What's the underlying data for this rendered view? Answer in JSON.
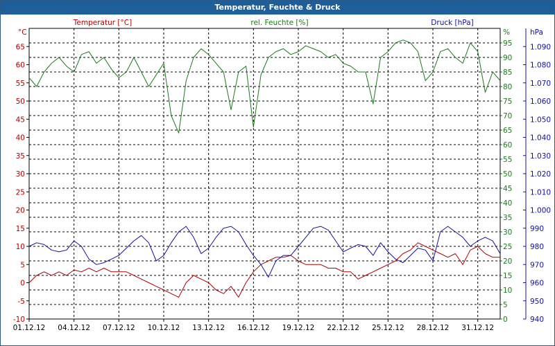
{
  "window": {
    "title": "Temperatur, Feuchte & Druck"
  },
  "colors": {
    "temperature": "#b00000",
    "humidity": "#1a7a1a",
    "pressure": "#1010a0",
    "grid": "#000000",
    "frame": "#2a5a8a",
    "titlebar": "#1f5f99"
  },
  "chart_data": {
    "type": "line",
    "title": "Temperatur, Feuchte & Druck",
    "x_labels": [
      "01.12.12",
      "04.12.12",
      "07.12.12",
      "10.12.12",
      "13.12.12",
      "16.12.12",
      "19.12.12",
      "22.12.12",
      "25.12.12",
      "28.12.12",
      "31.12.12"
    ],
    "xlim": [
      0,
      31.5
    ],
    "grid": true,
    "axes": {
      "temperature": {
        "label": "Temperatur [°C]",
        "unit": "°C",
        "ylim": [
          -10,
          70
        ],
        "ticks": [
          -10,
          -5,
          0,
          5,
          10,
          15,
          20,
          25,
          30,
          35,
          40,
          45,
          50,
          55,
          60,
          65
        ]
      },
      "humidity": {
        "label": "rel. Feuchte [%]",
        "unit": "%",
        "ylim": [
          0,
          100
        ],
        "ticks": [
          0,
          5,
          10,
          15,
          20,
          25,
          30,
          35,
          40,
          45,
          50,
          55,
          60,
          65,
          70,
          75,
          80,
          85,
          90,
          95
        ]
      },
      "pressure": {
        "label": "Druck [hPa]",
        "unit": "hPa",
        "ylim": [
          940,
          1100
        ],
        "ticks": [
          "940",
          "950",
          "960",
          "970",
          "980",
          "990",
          "1.000",
          "1.010",
          "1.020",
          "1.030",
          "1.040",
          "1.050",
          "1.060",
          "1.070",
          "1.080",
          "1.090"
        ]
      }
    },
    "series": [
      {
        "name": "Temperatur [°C]",
        "axis": "temperature",
        "x": [
          0,
          0.5,
          1,
          1.5,
          2,
          2.5,
          3,
          3.5,
          4,
          4.5,
          5,
          5.5,
          6,
          6.5,
          7,
          7.5,
          8,
          8.5,
          9,
          9.5,
          10,
          10.5,
          11,
          11.5,
          12,
          12.5,
          13,
          13.5,
          14,
          14.5,
          15,
          15.5,
          16,
          16.5,
          17,
          17.5,
          18,
          18.5,
          19,
          19.5,
          20,
          20.5,
          21,
          21.5,
          22,
          22.5,
          23,
          23.5,
          24,
          24.5,
          25,
          25.5,
          26,
          26.5,
          27,
          27.5,
          28,
          28.5,
          29,
          29.5,
          30,
          30.5,
          31,
          31.5
        ],
        "y": [
          0,
          2,
          3,
          2,
          3,
          2,
          3.5,
          3,
          4,
          3,
          4,
          3,
          3,
          3,
          2,
          1,
          0,
          -1,
          -2,
          -3,
          -4,
          0,
          2,
          1,
          0,
          -2,
          -3,
          -1,
          -4,
          0,
          3,
          5,
          6,
          7,
          7,
          7.5,
          6,
          5,
          5,
          5,
          4,
          4,
          3,
          3,
          1,
          2,
          3,
          4,
          5,
          6,
          8,
          9,
          11,
          10,
          9,
          8,
          7,
          8,
          5,
          9,
          10,
          8,
          7,
          7
        ]
      },
      {
        "name": "rel. Feuchte [%]",
        "axis": "humidity",
        "x": [
          0,
          0.5,
          1,
          1.5,
          2,
          2.5,
          3,
          3.5,
          4,
          4.5,
          5,
          5.5,
          6,
          6.5,
          7,
          7.5,
          8,
          8.5,
          9,
          9.5,
          10,
          10.5,
          11,
          11.5,
          12,
          12.5,
          13,
          13.5,
          14,
          14.5,
          15,
          15.5,
          16,
          16.5,
          17,
          17.5,
          18,
          18.5,
          19,
          19.5,
          20,
          20.5,
          21,
          21.5,
          22,
          22.5,
          23,
          23.5,
          24,
          24.5,
          25,
          25.5,
          26,
          26.5,
          27,
          27.5,
          28,
          28.5,
          29,
          29.5,
          30,
          30.5,
          31,
          31.5
        ],
        "y": [
          83,
          80,
          85,
          88,
          90,
          87,
          85,
          91,
          92,
          88,
          90,
          86,
          83,
          85,
          90,
          85,
          80,
          84,
          88,
          70,
          64,
          82,
          90,
          93,
          91,
          88,
          85,
          72,
          85,
          87,
          66,
          84,
          90,
          92,
          93,
          91,
          92,
          94,
          93,
          92,
          90,
          91,
          88,
          87,
          85,
          85,
          74,
          90,
          92,
          95,
          96,
          95,
          92,
          82,
          85,
          92,
          93,
          90,
          88,
          95,
          92,
          78,
          85,
          82
        ]
      },
      {
        "name": "Druck [hPa]",
        "axis": "pressure",
        "x": [
          0,
          0.5,
          1,
          1.5,
          2,
          2.5,
          3,
          3.5,
          4,
          4.5,
          5,
          5.5,
          6,
          6.5,
          7,
          7.5,
          8,
          8.5,
          9,
          9.5,
          10,
          10.5,
          11,
          11.5,
          12,
          12.5,
          13,
          13.5,
          14,
          14.5,
          15,
          15.5,
          16,
          16.5,
          17,
          17.5,
          18,
          18.5,
          19,
          19.5,
          20,
          20.5,
          21,
          21.5,
          22,
          22.5,
          23,
          23.5,
          24,
          24.5,
          25,
          25.5,
          26,
          26.5,
          27,
          27.5,
          28,
          28.5,
          29,
          29.5,
          30,
          30.5,
          31,
          31.5
        ],
        "y": [
          980,
          982,
          981,
          978,
          977,
          978,
          983,
          980,
          973,
          970,
          971,
          973,
          975,
          979,
          983,
          986,
          982,
          972,
          975,
          982,
          988,
          991,
          985,
          976,
          979,
          985,
          990,
          991,
          988,
          981,
          975,
          970,
          963,
          972,
          975,
          975,
          980,
          985,
          990,
          991,
          989,
          983,
          977,
          979,
          981,
          980,
          975,
          982,
          977,
          973,
          971,
          975,
          979,
          978,
          972,
          988,
          991,
          988,
          985,
          980,
          983,
          985,
          983,
          976
        ]
      }
    ]
  }
}
